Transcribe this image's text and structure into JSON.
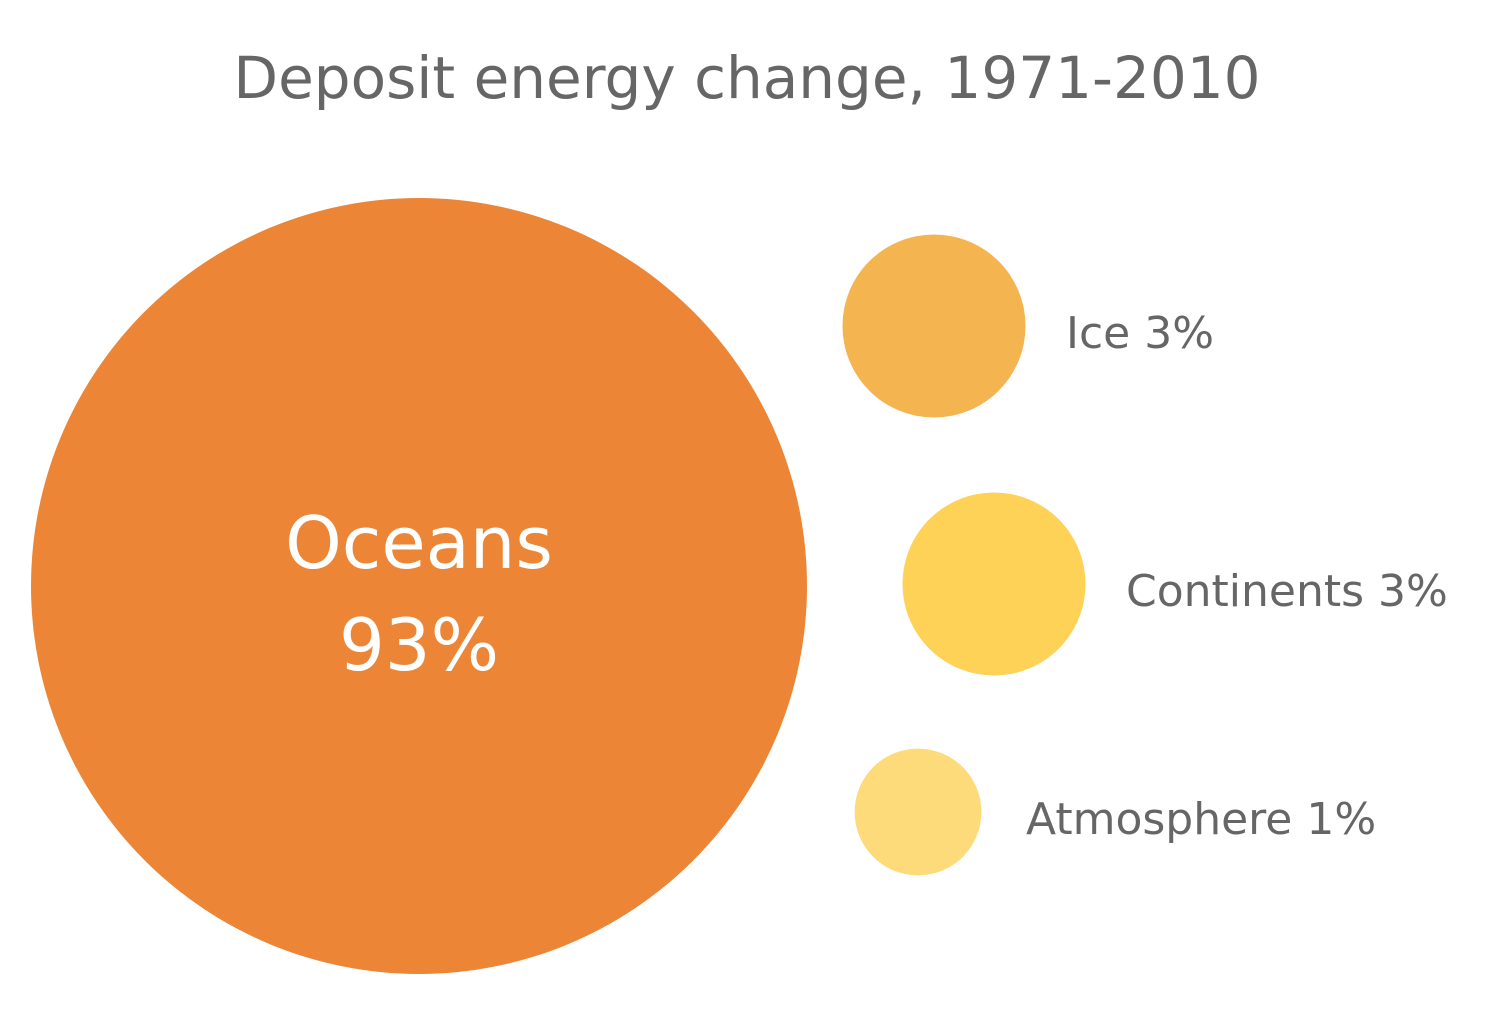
{
  "chart_data": {
    "type": "bubble",
    "title": "Deposit energy change, 1971-2010",
    "unit": "%",
    "series": [
      {
        "name": "Oceans",
        "value": 93,
        "label_line1": "Oceans",
        "label_line2": "93%",
        "color": "#EC8535"
      },
      {
        "name": "Ice",
        "value": 3,
        "label": "Ice 3%",
        "color": "#F4B550"
      },
      {
        "name": "Continents",
        "value": 3,
        "label": "Continents 3%",
        "color": "#FDD257"
      },
      {
        "name": "Atmosphere",
        "value": 1,
        "label": "Atmosphere 1%",
        "color": "#FDDA7A"
      }
    ]
  }
}
